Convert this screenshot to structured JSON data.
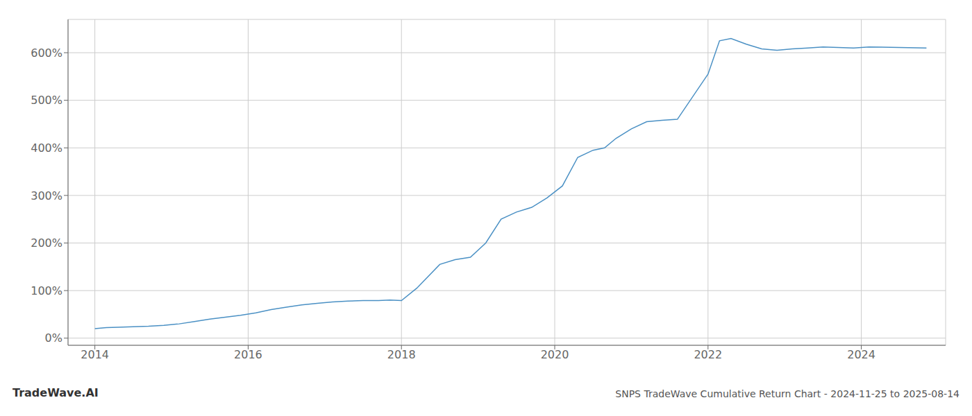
{
  "chart_data": {
    "type": "line",
    "title": "SNPS TradeWave Cumulative Return Chart - 2024-11-25 to 2025-08-14",
    "annotations": [
      "TradeWave.AI"
    ],
    "color": "#4a90c4",
    "grid": true,
    "x": [
      2014.0,
      2014.15,
      2014.3,
      2014.5,
      2014.7,
      2014.9,
      2015.1,
      2015.3,
      2015.5,
      2015.7,
      2015.9,
      2016.1,
      2016.3,
      2016.5,
      2016.7,
      2016.9,
      2017.1,
      2017.3,
      2017.5,
      2017.7,
      2017.85,
      2018.0,
      2018.2,
      2018.5,
      2018.7,
      2018.9,
      2019.1,
      2019.3,
      2019.5,
      2019.7,
      2019.9,
      2020.1,
      2020.3,
      2020.5,
      2020.65,
      2020.8,
      2021.0,
      2021.2,
      2021.4,
      2021.6,
      2022.0,
      2022.15,
      2022.3,
      2022.5,
      2022.7,
      2022.9,
      2023.1,
      2023.3,
      2023.5,
      2023.7,
      2023.9,
      2024.1,
      2024.5,
      2024.85
    ],
    "values": [
      20,
      22,
      23,
      24,
      25,
      27,
      30,
      35,
      40,
      44,
      48,
      53,
      60,
      65,
      70,
      73,
      76,
      78,
      79,
      79,
      80,
      79,
      105,
      155,
      165,
      170,
      200,
      250,
      265,
      275,
      295,
      320,
      380,
      395,
      400,
      420,
      440,
      455,
      458,
      460,
      555,
      625,
      630,
      618,
      608,
      605,
      608,
      610,
      612,
      611,
      610,
      612,
      611,
      610
    ],
    "xlim": [
      2013.65,
      2025.1
    ],
    "ylim": [
      -15,
      670
    ],
    "xticks": [
      2014,
      2016,
      2018,
      2020,
      2022,
      2024
    ],
    "yticks": [
      {
        "value": 0,
        "label": "0%"
      },
      {
        "value": 100,
        "label": "100%"
      },
      {
        "value": 200,
        "label": "200%"
      },
      {
        "value": 300,
        "label": "300%"
      },
      {
        "value": 400,
        "label": "400%"
      },
      {
        "value": 500,
        "label": "500%"
      },
      {
        "value": 600,
        "label": "600%"
      }
    ]
  }
}
